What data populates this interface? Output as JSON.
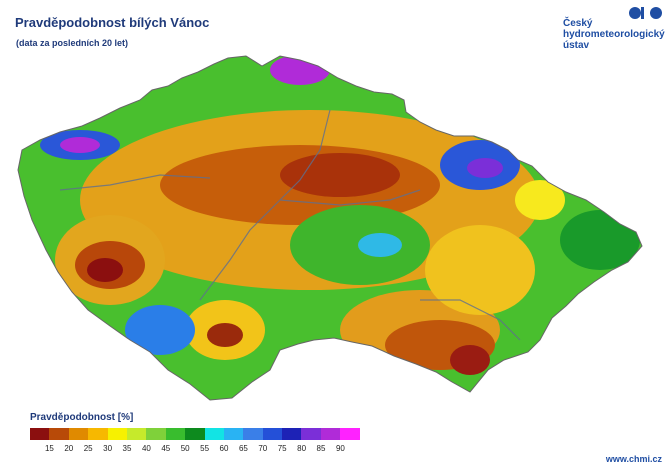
{
  "title": "Pravděpodobnost bílých Vánoc",
  "subtitle": "(data za posledních 20 let)",
  "logo": {
    "lines": [
      "Český",
      "hydrometeorologický",
      "ústav"
    ],
    "icon": "chmi-logo-icon"
  },
  "legend": {
    "title": "Pravděpodobnost [%]",
    "colors": [
      "#8b0f0f",
      "#b84a08",
      "#e08a00",
      "#f7b800",
      "#f7f100",
      "#c6ea2b",
      "#7fd13a",
      "#39bd2e",
      "#0d8a1e",
      "#12e4e4",
      "#29b3f3",
      "#3a7fe8",
      "#2450d8",
      "#1d22b6",
      "#7b2fd8",
      "#b02bd8",
      "#ff22ff"
    ],
    "ticks": [
      "15",
      "20",
      "25",
      "30",
      "35",
      "40",
      "45",
      "50",
      "55",
      "60",
      "65",
      "70",
      "75",
      "80",
      "85",
      "90"
    ]
  },
  "url": "www.chmi.cz"
}
